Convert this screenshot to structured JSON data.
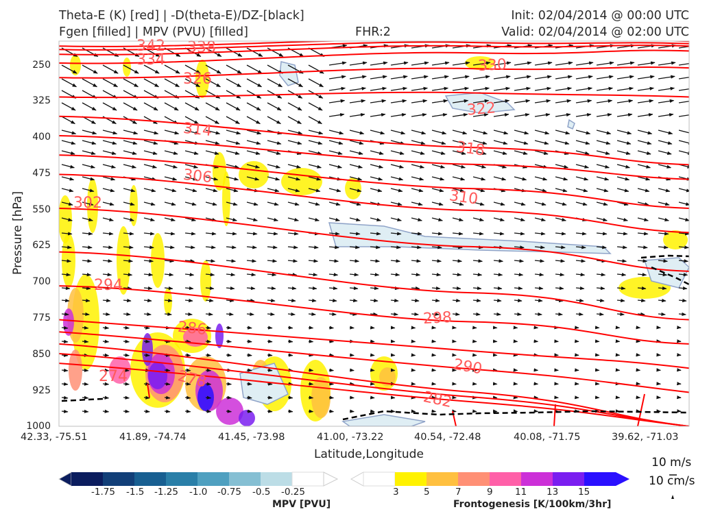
{
  "header": {
    "title_left_1": "Theta-E (K) [red] | -D(theta-E)/DZ-[black]",
    "title_left_2": "Fgen [filled] | MPV (PVU) [filled]",
    "title_center": "FHR:2",
    "title_right_1": "Init: 02/04/2014 @ 00:00 UTC",
    "title_right_2": "Valid: 02/04/2014 @ 02:00 UTC"
  },
  "chart_data": {
    "type": "cross-section",
    "xlabel": "Latitude,Longitude",
    "ylabel": "Pressure [hPa]",
    "ylim": [
      1000,
      200
    ],
    "y_ticks": [
      "250",
      "325",
      "400",
      "475",
      "550",
      "625",
      "700",
      "775",
      "850",
      "925",
      "1000"
    ],
    "x_ticks": [
      "42.33, -75.51",
      "41.89, -74.74",
      "41.45, -73.98",
      "41.00, -73.22",
      "40.54, -72.48",
      "40.08, -71.75",
      "39.62, -71.03"
    ],
    "theta_e_label_values": [
      "342",
      "338",
      "334",
      "330",
      "326",
      "322",
      "318",
      "314",
      "310",
      "306",
      "302",
      "298",
      "294",
      "290",
      "286",
      "282",
      "278",
      "274"
    ],
    "theta_e_contours": [
      {
        "value": 342,
        "pressure_at_cross_section_start": 215,
        "pressure_at_cross_section_end": 205
      },
      {
        "value": 338,
        "pressure_at_cross_section_start": 222,
        "pressure_at_cross_section_end": 210
      },
      {
        "value": 334,
        "pressure_at_cross_section_start": 232,
        "pressure_at_cross_section_end": 215
      },
      {
        "value": 330,
        "pressure_at_cross_section_start": 250,
        "pressure_at_cross_section_end": 225
      },
      {
        "value": 326,
        "pressure_at_cross_section_start": 280,
        "pressure_at_cross_section_end": 260
      },
      {
        "value": 322,
        "pressure_at_cross_section_start": 320,
        "pressure_at_cross_section_end": 320
      },
      {
        "value": 318,
        "pressure_at_cross_section_start": 360,
        "pressure_at_cross_section_end": 460
      },
      {
        "value": 314,
        "pressure_at_cross_section_start": 400,
        "pressure_at_cross_section_end": 490
      },
      {
        "value": 310,
        "pressure_at_cross_section_start": 440,
        "pressure_at_cross_section_end": 550
      },
      {
        "value": 306,
        "pressure_at_cross_section_start": 480,
        "pressure_at_cross_section_end": 600
      },
      {
        "value": 302,
        "pressure_at_cross_section_start": 550,
        "pressure_at_cross_section_end": 680
      },
      {
        "value": 298,
        "pressure_at_cross_section_start": 640,
        "pressure_at_cross_section_end": 780
      },
      {
        "value": 294,
        "pressure_at_cross_section_start": 710,
        "pressure_at_cross_section_end": 830
      },
      {
        "value": 290,
        "pressure_at_cross_section_start": 780,
        "pressure_at_cross_section_end": 880
      },
      {
        "value": 286,
        "pressure_at_cross_section_start": 805,
        "pressure_at_cross_section_end": 930
      },
      {
        "value": 282,
        "pressure_at_cross_section_start": 830,
        "pressure_at_cross_section_end": 1000
      },
      {
        "value": 278,
        "pressure_at_cross_section_start": 850,
        "pressure_at_cross_section_end": 1000
      },
      {
        "value": 274,
        "pressure_at_cross_section_start": 870,
        "pressure_at_cross_section_end": 1000
      }
    ],
    "mpv_colorbar": {
      "title": "MPV [PVU]",
      "tick_labels": [
        "-1.75",
        "-1.5",
        "-1.25",
        "-1.0",
        "-0.75",
        "-0.5",
        "-0.25"
      ],
      "colors": [
        "#0b1d5e",
        "#123f78",
        "#185f91",
        "#2a7fa8",
        "#4fa0c0",
        "#85bfd3",
        "#bcdde6",
        "#ffffff"
      ]
    },
    "fgen_colorbar": {
      "title": "Frontogenesis [K/100km/3hr]",
      "tick_labels": [
        "3",
        "5",
        "7",
        "9",
        "11",
        "13",
        "15"
      ],
      "colors": [
        "#ffffff",
        "#fff200",
        "#ffc040",
        "#ff9075",
        "#ff60a8",
        "#cc30d8",
        "#7a1ef0",
        "#2a10ff"
      ]
    },
    "wind_key": {
      "horizontal": "10 m/s",
      "vertical": "10 cm/s"
    }
  },
  "colors": {
    "theta_e": "#ff0000",
    "theta_e_label": "#ff5a5a",
    "ddz_contour": "#000000",
    "mpv_outline": "#8fa3c8",
    "mpv_fill": "#dfeef4"
  }
}
